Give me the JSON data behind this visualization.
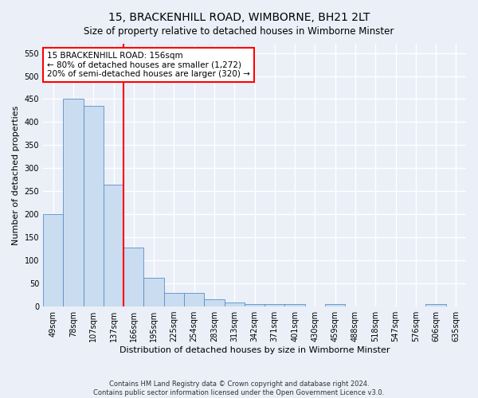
{
  "title": "15, BRACKENHILL ROAD, WIMBORNE, BH21 2LT",
  "subtitle": "Size of property relative to detached houses in Wimborne Minster",
  "xlabel": "Distribution of detached houses by size in Wimborne Minster",
  "ylabel": "Number of detached properties",
  "footer_line1": "Contains HM Land Registry data © Crown copyright and database right 2024.",
  "footer_line2": "Contains public sector information licensed under the Open Government Licence v3.0.",
  "bar_labels": [
    "49sqm",
    "78sqm",
    "107sqm",
    "137sqm",
    "166sqm",
    "195sqm",
    "225sqm",
    "254sqm",
    "283sqm",
    "313sqm",
    "342sqm",
    "371sqm",
    "401sqm",
    "430sqm",
    "459sqm",
    "488sqm",
    "518sqm",
    "547sqm",
    "576sqm",
    "606sqm",
    "635sqm"
  ],
  "bar_values": [
    200,
    450,
    435,
    265,
    128,
    62,
    30,
    30,
    15,
    8,
    6,
    6,
    6,
    0,
    5,
    0,
    0,
    0,
    0,
    5,
    0
  ],
  "bar_color": "#c9dcf0",
  "bar_edge_color": "#5a8ec8",
  "property_line_x": 3.5,
  "annotation_text": "15 BRACKENHILL ROAD: 156sqm\n← 80% of detached houses are smaller (1,272)\n20% of semi-detached houses are larger (320) →",
  "annotation_box_color": "white",
  "annotation_box_edge": "red",
  "vline_color": "red",
  "ylim": [
    0,
    570
  ],
  "yticks": [
    0,
    50,
    100,
    150,
    200,
    250,
    300,
    350,
    400,
    450,
    500,
    550
  ],
  "background_color": "#eaeff8",
  "plot_bg_color": "#eaeff8",
  "grid_color": "white",
  "title_fontsize": 10,
  "xlabel_fontsize": 8,
  "ylabel_fontsize": 8,
  "tick_fontsize": 7,
  "annot_fontsize": 7.5
}
